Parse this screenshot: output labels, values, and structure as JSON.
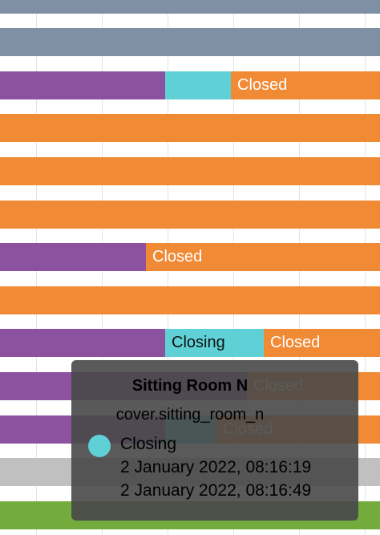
{
  "colors": {
    "slate": "#7f8fa4",
    "purple": "#8c52a0",
    "teal": "#5fd1d6",
    "orange": "#f18a35",
    "gray": "#c0c0c0",
    "green": "#73ac3c",
    "tooltip_bg": "#484848"
  },
  "timeline": {
    "rows": [
      {
        "segments": [
          {
            "label": "",
            "color": "slate",
            "from": 0,
            "to": 1
          }
        ]
      },
      {
        "segments": [
          {
            "label": "",
            "color": "slate",
            "from": 0,
            "to": 1
          }
        ]
      },
      {
        "segments": [
          {
            "label": "",
            "color": "purple",
            "from": 0,
            "to": 0.434
          },
          {
            "label": "",
            "color": "teal",
            "from": 0.434,
            "to": 0.608
          },
          {
            "label": "Closed",
            "color": "orange",
            "from": 0.608,
            "to": 1
          }
        ]
      },
      {
        "segments": [
          {
            "label": "",
            "color": "orange",
            "from": 0,
            "to": 1
          }
        ]
      },
      {
        "segments": [
          {
            "label": "",
            "color": "orange",
            "from": 0,
            "to": 1
          }
        ]
      },
      {
        "segments": [
          {
            "label": "",
            "color": "orange",
            "from": 0,
            "to": 1
          }
        ]
      },
      {
        "segments": [
          {
            "label": "",
            "color": "purple",
            "from": 0,
            "to": 0.384
          },
          {
            "label": "Closed",
            "color": "orange",
            "from": 0.384,
            "to": 1
          }
        ]
      },
      {
        "segments": [
          {
            "label": "",
            "color": "orange",
            "from": 0,
            "to": 1
          }
        ]
      },
      {
        "segments": [
          {
            "label": "",
            "color": "purple",
            "from": 0,
            "to": 0.434
          },
          {
            "label": "Closing",
            "color": "teal",
            "from": 0.434,
            "to": 0.694
          },
          {
            "label": "Closed",
            "color": "orange",
            "from": 0.694,
            "to": 1
          }
        ]
      },
      {
        "segments": [
          {
            "label": "",
            "color": "purple",
            "from": 0,
            "to": 0.65
          },
          {
            "label": "Closed",
            "color": "orange",
            "from": 0.65,
            "to": 1
          }
        ]
      },
      {
        "segments": [
          {
            "label": "",
            "color": "purple",
            "from": 0,
            "to": 0.434
          },
          {
            "label": "",
            "color": "teal",
            "from": 0.434,
            "to": 0.57
          },
          {
            "label": "Closed",
            "color": "orange",
            "from": 0.57,
            "to": 1
          }
        ]
      },
      {
        "segments": [
          {
            "label": "",
            "color": "gray",
            "from": 0,
            "to": 1
          }
        ]
      },
      {
        "segments": [
          {
            "label": "",
            "color": "green",
            "from": 0,
            "to": 1
          }
        ]
      }
    ]
  },
  "tooltip": {
    "title": "Sitting Room N",
    "entity": "cover.sitting_room_n",
    "state": "Closing",
    "state_color": "teal",
    "start": "2 January 2022, 08:16:19",
    "end": "2 January 2022, 08:16:49"
  }
}
